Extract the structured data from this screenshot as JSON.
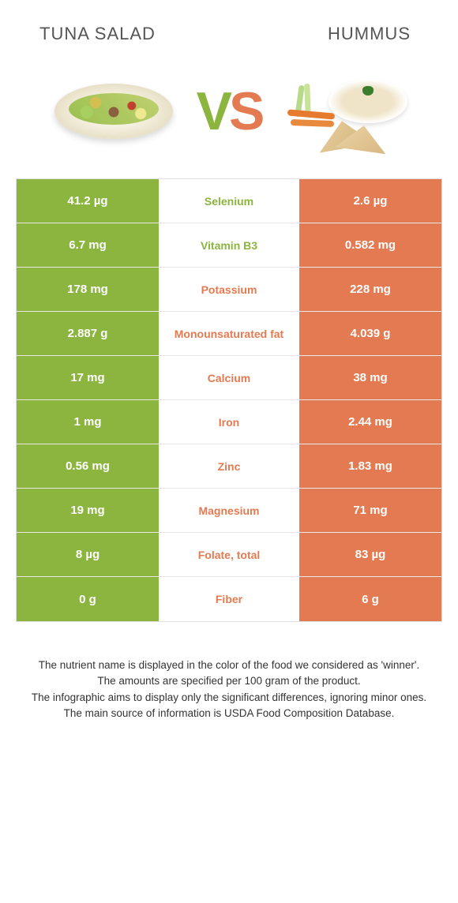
{
  "colors": {
    "left": "#8bb53f",
    "right": "#e47a51",
    "row_bg": "#ffffff",
    "border": "#e0e0e0",
    "text_dark": "#555555"
  },
  "header": {
    "left_title": "Tuna salad",
    "right_title": "Hummus"
  },
  "vs": {
    "v": "V",
    "s": "S"
  },
  "rows": [
    {
      "left": "41.2 µg",
      "label": "Selenium",
      "right": "2.6 µg",
      "winner": "left"
    },
    {
      "left": "6.7 mg",
      "label": "Vitamin B3",
      "right": "0.582 mg",
      "winner": "left"
    },
    {
      "left": "178 mg",
      "label": "Potassium",
      "right": "228 mg",
      "winner": "right"
    },
    {
      "left": "2.887 g",
      "label": "Monounsaturated fat",
      "right": "4.039 g",
      "winner": "right"
    },
    {
      "left": "17 mg",
      "label": "Calcium",
      "right": "38 mg",
      "winner": "right"
    },
    {
      "left": "1 mg",
      "label": "Iron",
      "right": "2.44 mg",
      "winner": "right"
    },
    {
      "left": "0.56 mg",
      "label": "Zinc",
      "right": "1.83 mg",
      "winner": "right"
    },
    {
      "left": "19 mg",
      "label": "Magnesium",
      "right": "71 mg",
      "winner": "right"
    },
    {
      "left": "8 µg",
      "label": "Folate, total",
      "right": "83 µg",
      "winner": "right"
    },
    {
      "left": "0 g",
      "label": "Fiber",
      "right": "6 g",
      "winner": "right"
    }
  ],
  "footer": {
    "line1": "The nutrient name is displayed in the color of the food we considered as 'winner'.",
    "line2": "The amounts are specified per 100 gram of the product.",
    "line3": "The infographic aims to display only the significant differences, ignoring minor ones.",
    "line4": "The main source of information is USDA Food Composition Database."
  }
}
